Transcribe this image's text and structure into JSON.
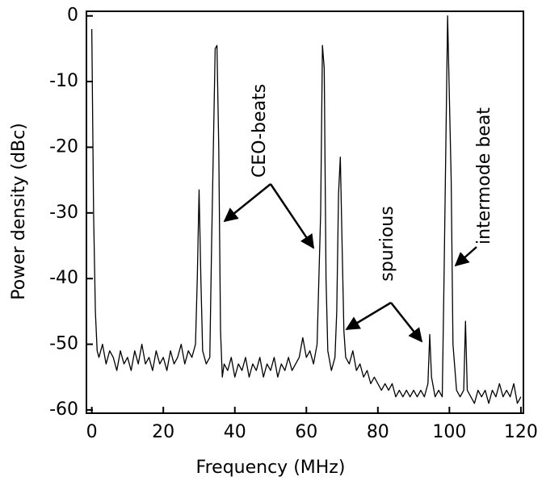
{
  "chart_data": {
    "type": "line",
    "x_label": "Frequency (MHz)",
    "y_label": "Power density (dBc)",
    "color": "#000000",
    "xlim": [
      -1.5,
      120.7
    ],
    "ylim": [
      -60.5,
      0.7
    ],
    "xticks": [
      0,
      20,
      40,
      60,
      80,
      100,
      120
    ],
    "yticks": [
      0,
      -10,
      -20,
      -30,
      -40,
      -50,
      -60
    ],
    "annotations": [
      {
        "text": "CEO-beats"
      },
      {
        "text": "spurious"
      },
      {
        "text": "intermode beat"
      }
    ],
    "x": [
      0,
      0.5,
      1,
      1.5,
      2,
      3,
      4,
      5,
      6,
      7,
      8,
      9,
      10,
      11,
      12,
      13,
      14,
      15,
      16,
      17,
      18,
      19,
      20,
      21,
      22,
      23,
      24,
      25,
      26,
      27,
      28,
      29,
      29.5,
      30,
      30.5,
      31,
      32,
      33,
      33.5,
      34.5,
      35,
      35.5,
      36,
      36.5,
      37,
      38,
      39,
      40,
      41,
      42,
      43,
      44,
      45,
      46,
      47,
      48,
      49,
      50,
      51,
      52,
      53,
      54,
      55,
      56,
      57,
      58,
      59,
      60,
      61,
      62,
      63,
      64,
      64.5,
      65,
      65.5,
      66,
      67,
      68,
      68.5,
      69,
      69.5,
      70,
      70.5,
      71,
      72,
      73,
      74,
      75,
      76,
      77,
      78,
      79,
      80,
      81,
      82,
      83,
      84,
      85,
      86,
      87,
      88,
      89,
      90,
      91,
      92,
      93,
      94,
      94.5,
      95,
      96,
      97,
      98,
      98.5,
      99.5,
      100.5,
      101,
      102,
      103,
      104,
      104.5,
      105,
      106,
      107,
      108,
      109,
      110,
      111,
      112,
      113,
      114,
      115,
      116,
      117,
      118,
      119,
      120
    ],
    "values": [
      -2,
      -30,
      -45,
      -51,
      -52,
      -50,
      -53,
      -51,
      -52,
      -54,
      -51,
      -53,
      -52,
      -54,
      -51,
      -53,
      -50,
      -53,
      -52,
      -54,
      -51,
      -53,
      -52,
      -54,
      -51,
      -53,
      -52,
      -50,
      -53,
      -51,
      -52,
      -50,
      -40,
      -26.5,
      -40,
      -51,
      -53,
      -52,
      -35,
      -5,
      -4.5,
      -20,
      -48,
      -55,
      -53,
      -54,
      -52,
      -55,
      -53,
      -54,
      -52,
      -55,
      -53,
      -54,
      -52,
      -55,
      -53,
      -54,
      -52,
      -55,
      -53,
      -54,
      -52,
      -54,
      -53,
      -52,
      -49,
      -52,
      -51,
      -53,
      -50,
      -30,
      -4.5,
      -8,
      -40,
      -51,
      -54,
      -52,
      -45,
      -27,
      -21.5,
      -35,
      -48,
      -52,
      -53,
      -51,
      -54,
      -53,
      -55,
      -54,
      -56,
      -55,
      -56,
      -57,
      -56,
      -57,
      -56,
      -58,
      -57,
      -58,
      -57,
      -58,
      -57,
      -58,
      -57,
      -58,
      -56,
      -48.5,
      -55,
      -58,
      -57,
      -58,
      -40,
      0,
      -25,
      -50,
      -57,
      -58,
      -57,
      -46.5,
      -57,
      -58,
      -59,
      -57,
      -58,
      -57,
      -59,
      -57,
      -58,
      -56,
      -58,
      -57,
      -58,
      -56,
      -59,
      -58
    ]
  }
}
